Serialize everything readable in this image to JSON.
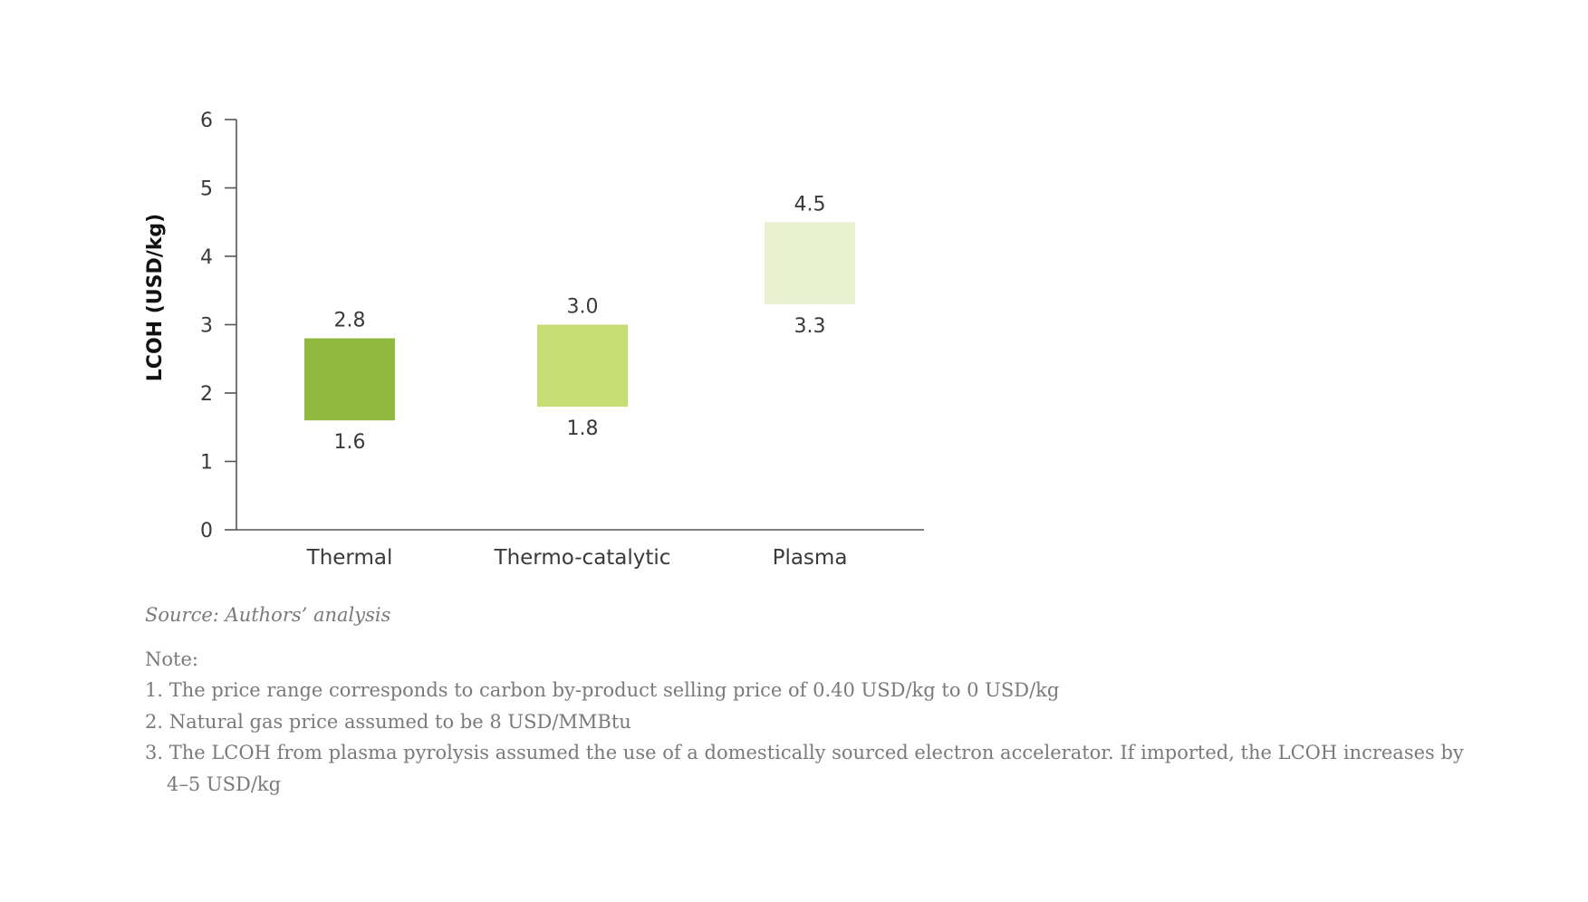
{
  "chart_data": {
    "type": "bar",
    "subtype": "floating-range",
    "categories": [
      "Thermal",
      "Thermo-catalytic",
      "Plasma"
    ],
    "ranges": [
      {
        "category": "Thermal",
        "low": 1.6,
        "high": 2.8,
        "low_label": "1.6",
        "high_label": "2.8",
        "color": "#8fba3e"
      },
      {
        "category": "Thermo-catalytic",
        "low": 1.8,
        "high": 3.0,
        "low_label": "1.8",
        "high_label": "3.0",
        "color": "#c5dd73"
      },
      {
        "category": "Plasma",
        "low": 3.3,
        "high": 4.5,
        "low_label": "3.3",
        "high_label": "4.5",
        "color": "#e9f1d0"
      }
    ],
    "ylabel": "LCOH (USD/kg)",
    "xlabel": "",
    "ylim": [
      0,
      6
    ],
    "yticks": [
      0,
      1,
      2,
      3,
      4,
      5,
      6
    ],
    "grid": false,
    "legend": "none"
  },
  "source": "Source: Authors’ analysis",
  "notes": {
    "heading": "Note:",
    "items": [
      "1. The price range corresponds to carbon by-product selling price of 0.40 USD/kg to 0 USD/kg",
      "2. Natural gas price assumed to be 8 USD/MMBtu",
      "3. The LCOH from plasma pyrolysis assumed the use of a domestically sourced electron accelerator. If imported, the LCOH increases by 4–5 USD/kg"
    ]
  }
}
